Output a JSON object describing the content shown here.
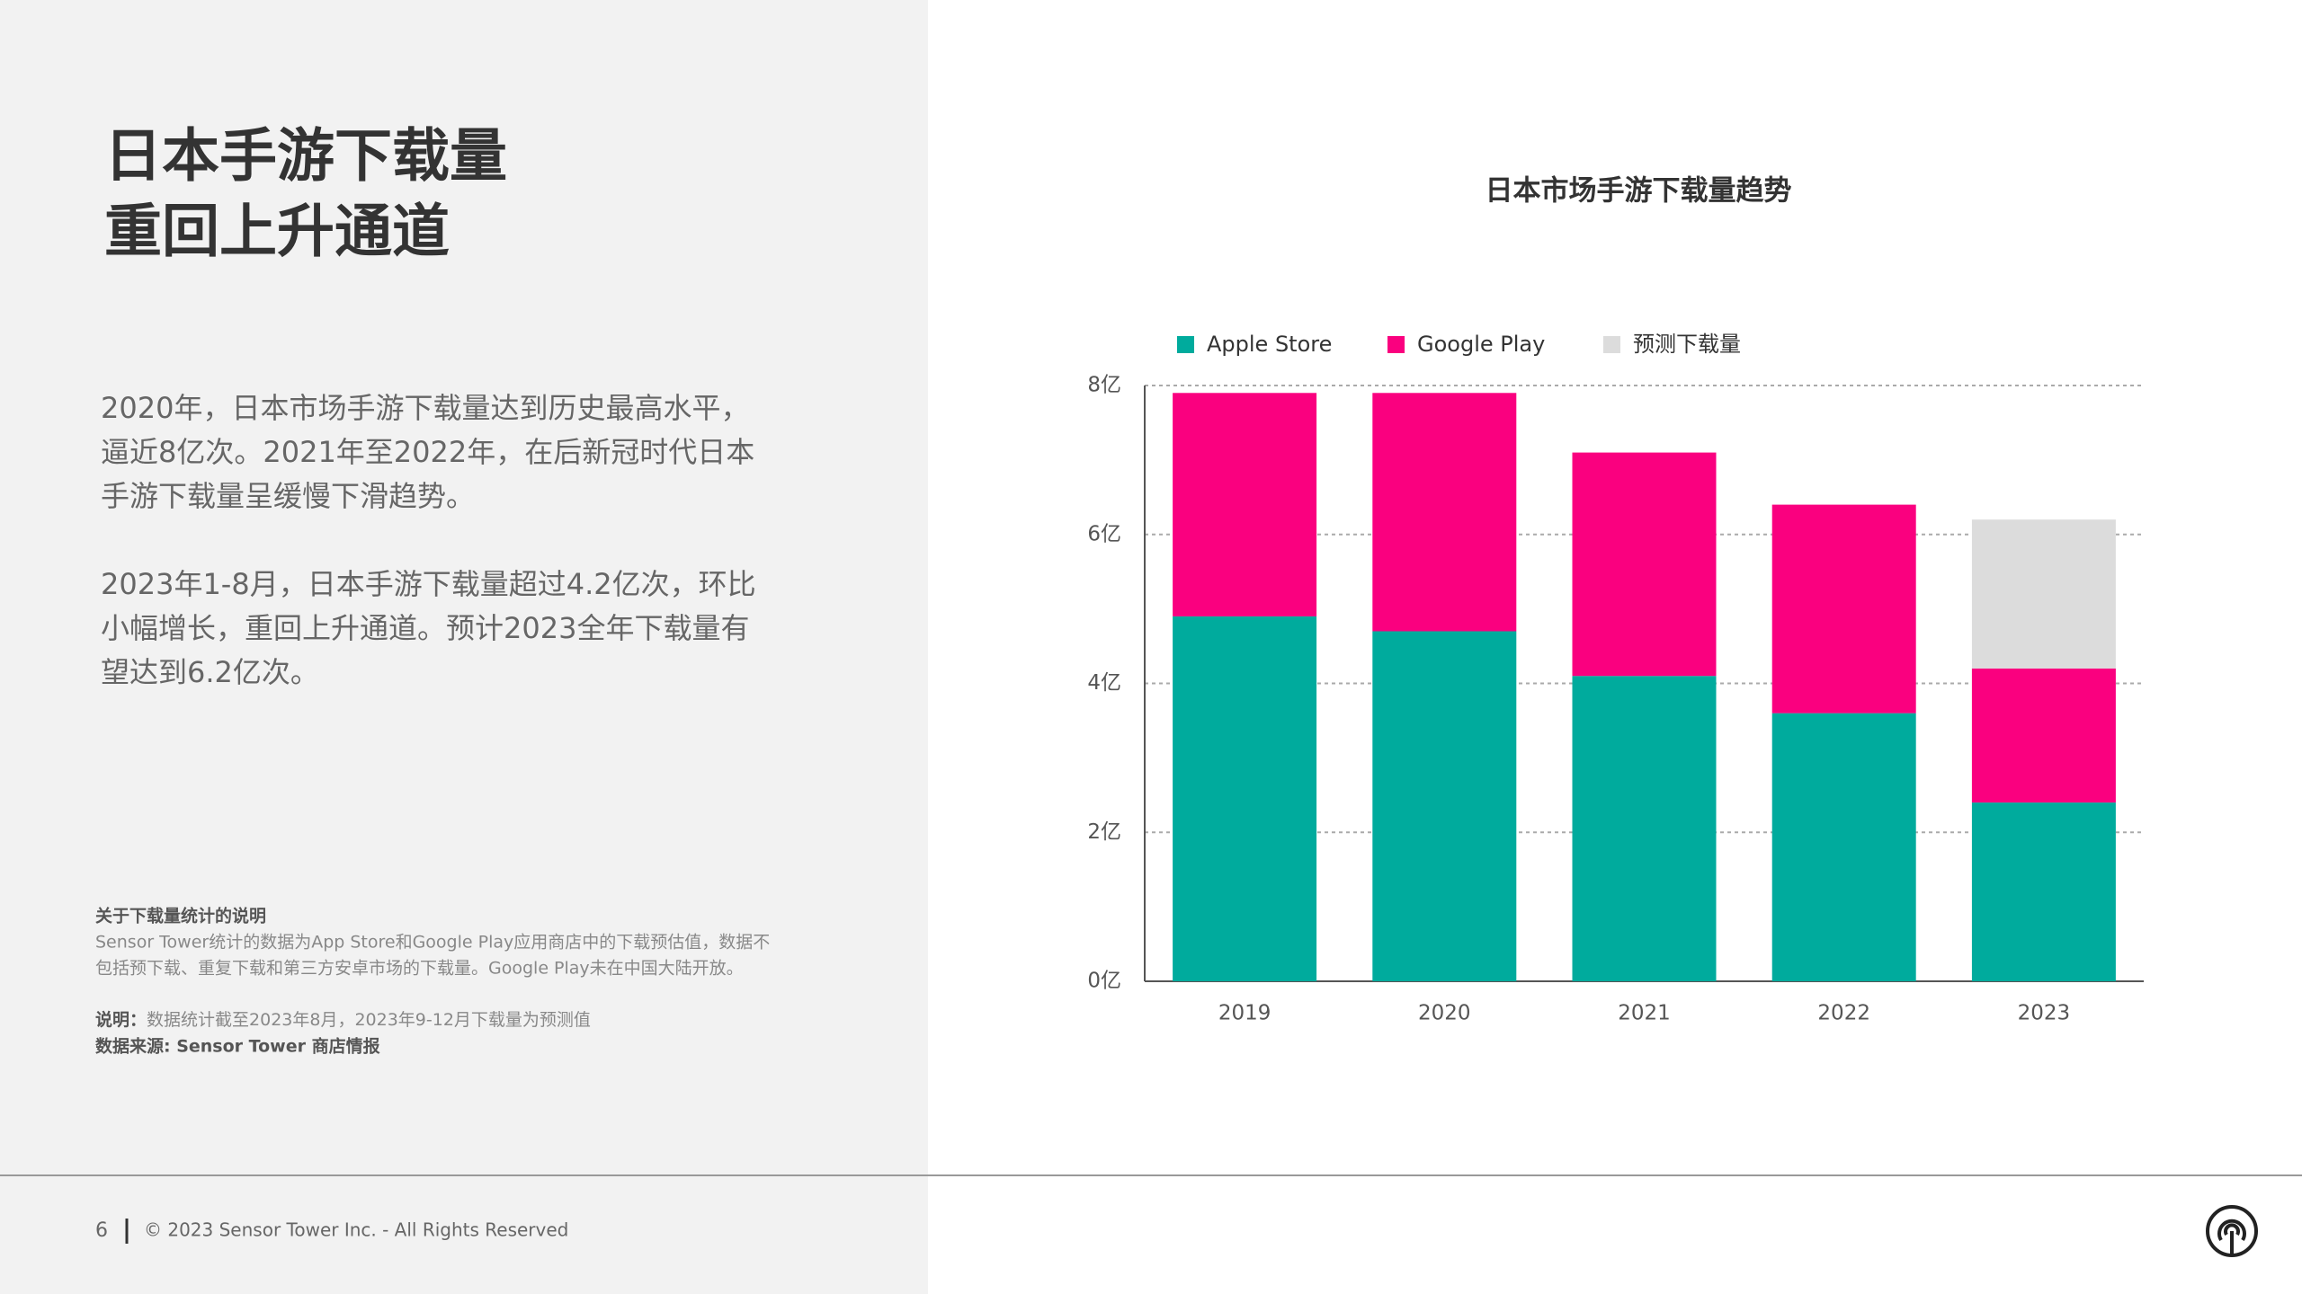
{
  "slide": {
    "title_lines": [
      "日本手游下载量",
      "重回上升通道"
    ],
    "paragraph1": [
      "2020年，日本市场手游下载量达到历史最高水平，",
      "逼近8亿次。2021年至2022年，在后新冠时代日本",
      "手游下载量呈缓慢下滑趋势。"
    ],
    "paragraph2": [
      "2023年1-8月，日本手游下载量超过4.2亿次，环比",
      "小幅增长，重回上升通道。预计2023全年下载量有",
      "望达到6.2亿次。"
    ],
    "note_title": "关于下载量统计的说明",
    "note_lines": [
      "Sensor  Tower统计的数据为App  Store和Google  Play应用商店中的下载预估值，数据不",
      "包括预下载、重复下载和第三方安卓市场的下载量。Google Play未在中国大陆开放。"
    ],
    "remark_label": "说明：",
    "remark_text": "数据统计截至2023年8月，2023年9-12月下载量为预测值",
    "source": "数据来源: Sensor Tower 商店情报",
    "page_number": "6",
    "copyright": "© 2023 Sensor Tower Inc. - All Rights Reserved"
  },
  "chart_data": {
    "type": "stacked_bar",
    "title": "日本市场手游下载量趋势",
    "categories": [
      "2019",
      "2020",
      "2021",
      "2022",
      "2023"
    ],
    "series": [
      {
        "name": "Apple Store",
        "color": "#00ab9d",
        "values": [
          4.9,
          4.7,
          4.1,
          3.6,
          2.4
        ]
      },
      {
        "name": "Google Play",
        "color": "#fa007f",
        "values": [
          3.0,
          3.2,
          3.0,
          2.8,
          1.8
        ]
      },
      {
        "name": "预测下载量",
        "color": "#dcdcdc",
        "values": [
          null,
          null,
          null,
          null,
          2.0
        ]
      }
    ],
    "ylim": [
      0,
      8
    ],
    "yticks": [
      {
        "value": 0,
        "label": "0亿"
      },
      {
        "value": 2,
        "label": "2亿"
      },
      {
        "value": 4,
        "label": "4亿"
      },
      {
        "value": 6,
        "label": "6亿"
      },
      {
        "value": 8,
        "label": "8亿"
      }
    ],
    "grid": true
  }
}
